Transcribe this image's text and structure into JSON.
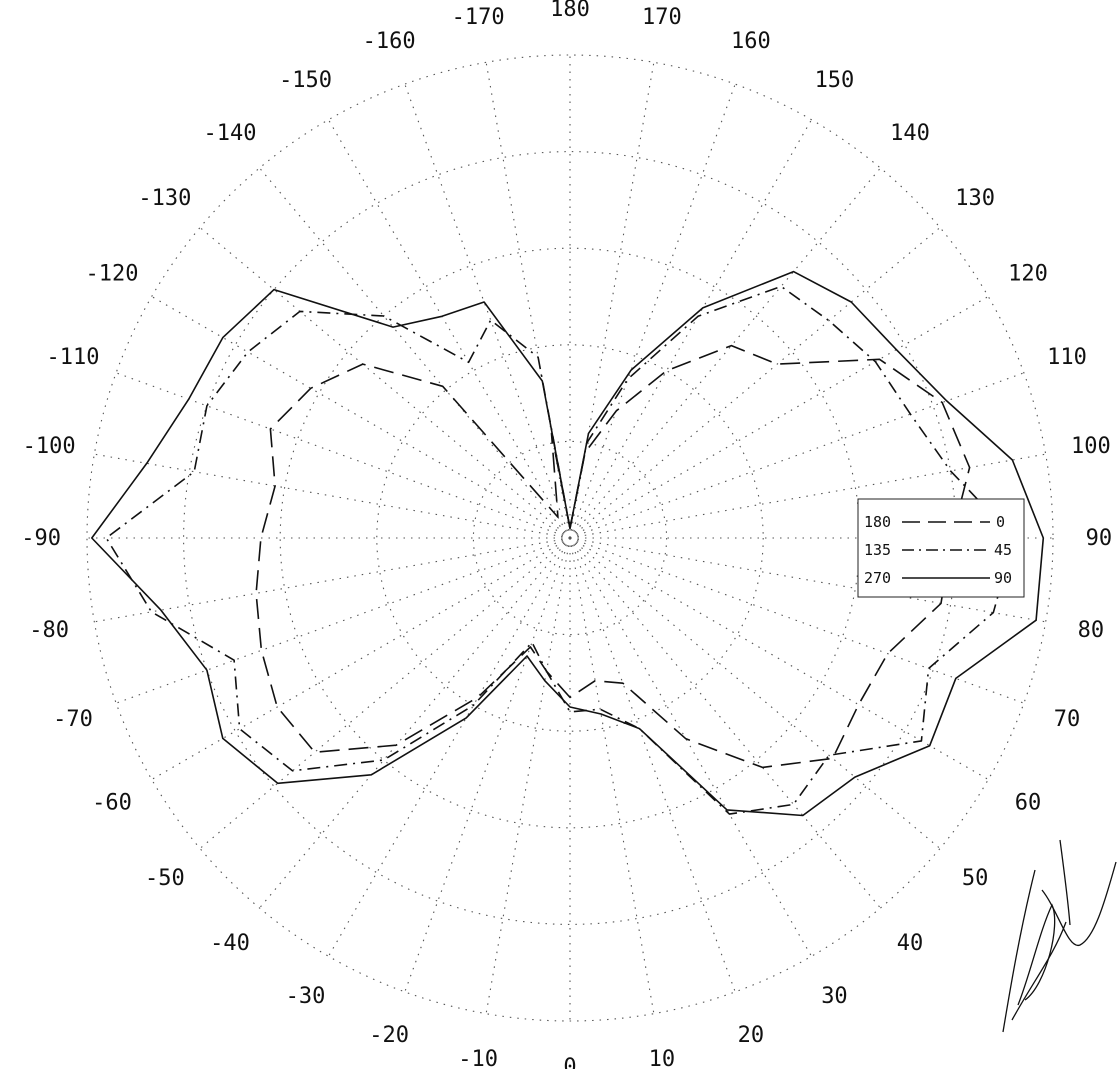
{
  "chart_data": {
    "type": "polar-line",
    "title": "",
    "angular_axis": {
      "zero_direction": "bottom",
      "direction": "counterclockwise-positive-to-right",
      "tick_step_degrees": 10,
      "tick_labels": [
        "0",
        "10",
        "20",
        "30",
        "40",
        "50",
        "60",
        "70",
        "80",
        "90",
        "100",
        "110",
        "120",
        "130",
        "140",
        "150",
        "160",
        "170",
        "180",
        "-170",
        "-160",
        "-150",
        "-140",
        "-130",
        "-120",
        "-110",
        "-100",
        "-90",
        "-80",
        "-70",
        "-60",
        "-50",
        "-40",
        "-30",
        "-20",
        "-10"
      ]
    },
    "radial_axis": {
      "rings": 5,
      "tick_labels_visible": false,
      "max_normalized": 1.0
    },
    "grid": true,
    "legend": {
      "placement": "right",
      "entries": [
        {
          "left": "180",
          "right": "0",
          "style": "dashed"
        },
        {
          "left": "135",
          "right": "45",
          "style": "dash-dot"
        },
        {
          "left": "270",
          "right": "90",
          "style": "solid"
        }
      ]
    },
    "series": [
      {
        "key": "180-0",
        "style": "dashed",
        "angles": [
          -180,
          -170,
          -160,
          -150,
          -140,
          -130,
          -120,
          -110,
          -100,
          -90,
          -80,
          -70,
          -60,
          -50,
          -40,
          -30,
          -20,
          -10,
          0,
          10,
          20,
          30,
          40,
          50,
          60,
          70,
          80,
          90,
          100,
          110,
          120,
          130,
          140,
          150,
          160,
          170
        ],
        "r": [
          0.02,
          0.22,
          0.08,
          0.05,
          0.41,
          0.56,
          0.62,
          0.66,
          0.62,
          0.64,
          0.66,
          0.68,
          0.7,
          0.69,
          0.56,
          0.38,
          0.24,
          0.28,
          0.33,
          0.3,
          0.32,
          0.48,
          0.62,
          0.71,
          0.69,
          0.7,
          0.78,
          0.79,
          0.84,
          0.82,
          0.74,
          0.56,
          0.52,
          0.4,
          0.28,
          0.18
        ]
      },
      {
        "key": "135-45",
        "style": "dash-dot",
        "angles": [
          -180,
          -170,
          -160,
          -150,
          -140,
          -130,
          -120,
          -110,
          -100,
          -90,
          -80,
          -70,
          -60,
          -50,
          -40,
          -30,
          -20,
          -10,
          0,
          10,
          20,
          30,
          40,
          50,
          60,
          70,
          80,
          90,
          100,
          110,
          120,
          130,
          140,
          150,
          160,
          170
        ],
        "r": [
          0.02,
          0.38,
          0.48,
          0.42,
          0.6,
          0.73,
          0.77,
          0.8,
          0.79,
          0.96,
          0.88,
          0.74,
          0.79,
          0.75,
          0.6,
          0.4,
          0.23,
          0.28,
          0.36,
          0.36,
          0.42,
          0.66,
          0.72,
          0.7,
          0.84,
          0.79,
          0.89,
          0.92,
          0.8,
          0.75,
          0.73,
          0.7,
          0.68,
          0.53,
          0.35,
          0.2
        ]
      },
      {
        "key": "270-90",
        "style": "solid",
        "angles": [
          -180,
          -170,
          -160,
          -150,
          -140,
          -130,
          -120,
          -110,
          -100,
          -90,
          -80,
          -70,
          -60,
          -50,
          -40,
          -30,
          -20,
          -10,
          0,
          10,
          20,
          30,
          40,
          50,
          60,
          70,
          80,
          90,
          100,
          110,
          120,
          130,
          140,
          150,
          160,
          170
        ],
        "r": [
          0.02,
          0.33,
          0.52,
          0.53,
          0.57,
          0.8,
          0.83,
          0.84,
          0.89,
          0.99,
          0.86,
          0.8,
          0.83,
          0.79,
          0.64,
          0.43,
          0.26,
          0.3,
          0.35,
          0.37,
          0.42,
          0.65,
          0.75,
          0.77,
          0.86,
          0.85,
          0.98,
          0.98,
          0.93,
          0.83,
          0.78,
          0.76,
          0.72,
          0.55,
          0.37,
          0.22
        ]
      }
    ]
  }
}
